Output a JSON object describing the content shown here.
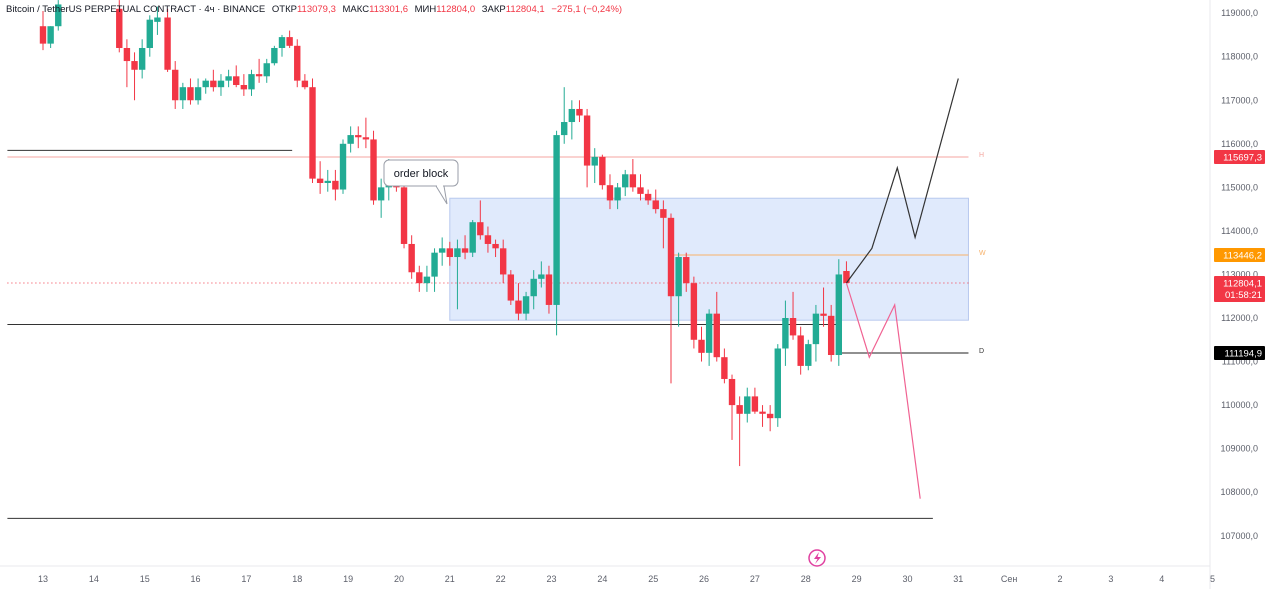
{
  "header": {
    "symbol": "Bitcoin / TetherUS PERPETUAL CONTRACT · 4ч · BINANCE",
    "open_label": "ОТКР",
    "open_value": "113079,3",
    "high_label": "МАКС",
    "high_value": "113301,6",
    "low_label": "МИН",
    "low_value": "112804,0",
    "close_label": "ЗАКР",
    "close_value": "112804,1",
    "change": "−275,1 (−0,24%)"
  },
  "annotation": {
    "order_block": "order block"
  },
  "level_markers": {
    "h": "H",
    "w": "W",
    "d": "D"
  },
  "price_tags": {
    "level_h": "115697,3",
    "level_w": "113446,2",
    "current_price": "112804,1",
    "countdown": "01:58:21",
    "level_d": "111194,9"
  },
  "colors": {
    "up": "#22ab94",
    "down": "#f23645",
    "zone": "#dbe6fb",
    "level_h": "#f4a6a0",
    "level_w": "#f7b16a",
    "projection_bear": "#f06292",
    "projection_bull": "#333333",
    "tag_h": "#f23645",
    "tag_w": "#ff9800",
    "tag_d": "#000000"
  },
  "chart_data": {
    "type": "candlestick",
    "title": "",
    "y_axis": {
      "ticks": [
        107000,
        108000,
        109000,
        110000,
        111000,
        112000,
        113000,
        114000,
        115000,
        116000,
        117000,
        118000,
        119000
      ],
      "tick_labels": [
        "107000,0",
        "108000,0",
        "109000,0",
        "110000,0",
        "111000,0",
        "112000,0",
        "113000,0",
        "114000,0",
        "115000,0",
        "116000,0",
        "117000,0",
        "118000,0",
        "119000,0"
      ],
      "range": [
        106200,
        119400
      ]
    },
    "x_axis": {
      "labels": [
        "13",
        "14",
        "15",
        "16",
        "17",
        "18",
        "19",
        "20",
        "21",
        "22",
        "23",
        "24",
        "25",
        "26",
        "27",
        "28",
        "29",
        "30",
        "31",
        "Сен",
        "2",
        "3",
        "4",
        "5"
      ],
      "range_days": [
        12.3,
        35.8
      ]
    },
    "candles": [
      [
        13.0,
        118700,
        119050,
        118150,
        118300
      ],
      [
        13.15,
        118300,
        118700,
        118200,
        118700
      ],
      [
        13.3,
        118700,
        119300,
        118600,
        119200
      ],
      [
        14.5,
        119100,
        119300,
        118100,
        118200
      ],
      [
        14.65,
        118200,
        118400,
        117300,
        117900
      ],
      [
        14.8,
        117900,
        118100,
        117000,
        117700
      ],
      [
        14.95,
        117700,
        118400,
        117500,
        118200
      ],
      [
        15.1,
        118200,
        118950,
        118000,
        118850
      ],
      [
        15.25,
        118800,
        119150,
        118500,
        118900
      ],
      [
        15.45,
        118900,
        119100,
        117650,
        117700
      ],
      [
        15.6,
        117700,
        117900,
        116800,
        117000
      ],
      [
        15.75,
        117000,
        117400,
        116800,
        117300
      ],
      [
        15.9,
        117300,
        117500,
        116900,
        117000
      ],
      [
        16.05,
        117000,
        117500,
        116900,
        117300
      ],
      [
        16.2,
        117300,
        117500,
        117150,
        117450
      ],
      [
        16.35,
        117450,
        117700,
        117200,
        117300
      ],
      [
        16.5,
        117300,
        117600,
        117100,
        117450
      ],
      [
        16.65,
        117450,
        117700,
        117300,
        117550
      ],
      [
        16.8,
        117550,
        117800,
        117300,
        117350
      ],
      [
        16.95,
        117350,
        117600,
        117100,
        117250
      ],
      [
        17.1,
        117250,
        117700,
        117100,
        117600
      ],
      [
        17.25,
        117600,
        117950,
        117400,
        117550
      ],
      [
        17.4,
        117550,
        117950,
        117400,
        117850
      ],
      [
        17.55,
        117850,
        118250,
        117800,
        118200
      ],
      [
        17.7,
        118200,
        118500,
        118000,
        118450
      ],
      [
        17.85,
        118450,
        118600,
        118200,
        118250
      ],
      [
        18.0,
        118250,
        118400,
        117300,
        117450
      ],
      [
        18.15,
        117450,
        117600,
        117250,
        117300
      ],
      [
        18.3,
        117300,
        117500,
        115100,
        115200
      ],
      [
        18.45,
        115200,
        115600,
        114850,
        115100
      ],
      [
        18.6,
        115100,
        115400,
        114900,
        115150
      ],
      [
        18.75,
        115150,
        115400,
        114700,
        114950
      ],
      [
        18.9,
        114950,
        116100,
        114850,
        116000
      ],
      [
        19.05,
        116000,
        116400,
        115800,
        116200
      ],
      [
        19.2,
        116200,
        116400,
        115900,
        116150
      ],
      [
        19.35,
        116150,
        116600,
        115900,
        116100
      ],
      [
        19.5,
        116100,
        116300,
        114600,
        114700
      ],
      [
        19.65,
        114700,
        115200,
        114300,
        115000
      ],
      [
        19.8,
        115000,
        115650,
        114700,
        115450
      ],
      [
        19.95,
        115450,
        115600,
        114900,
        115000
      ],
      [
        20.1,
        115000,
        115300,
        113600,
        113700
      ],
      [
        20.25,
        113700,
        113900,
        112900,
        113050
      ],
      [
        20.4,
        113050,
        113200,
        112600,
        112800
      ],
      [
        20.55,
        112800,
        113200,
        112600,
        112950
      ],
      [
        20.7,
        112950,
        113600,
        112600,
        113500
      ],
      [
        20.85,
        113500,
        113850,
        113200,
        113600
      ],
      [
        21.0,
        113600,
        113750,
        113200,
        113400
      ],
      [
        21.15,
        113400,
        113800,
        112200,
        113600
      ],
      [
        21.3,
        113600,
        113900,
        113350,
        113500
      ],
      [
        21.45,
        113500,
        114250,
        113400,
        114200
      ],
      [
        21.6,
        114200,
        114700,
        113800,
        113900
      ],
      [
        21.75,
        113900,
        114100,
        113500,
        113700
      ],
      [
        21.9,
        113700,
        113800,
        113400,
        113600
      ],
      [
        22.05,
        113600,
        113800,
        112800,
        113000
      ],
      [
        22.2,
        113000,
        113100,
        112300,
        112400
      ],
      [
        22.35,
        112400,
        112800,
        111950,
        112100
      ],
      [
        22.5,
        112100,
        112600,
        111950,
        112500
      ],
      [
        22.65,
        112500,
        113100,
        112200,
        112900
      ],
      [
        22.8,
        112900,
        113300,
        112700,
        113000
      ],
      [
        22.95,
        113000,
        113200,
        112100,
        112300
      ],
      [
        23.1,
        112300,
        116300,
        111600,
        116200
      ],
      [
        23.25,
        116200,
        117300,
        116000,
        116500
      ],
      [
        23.4,
        116500,
        117000,
        116100,
        116800
      ],
      [
        23.55,
        116800,
        117000,
        116500,
        116650
      ],
      [
        23.7,
        116650,
        116800,
        115000,
        115500
      ],
      [
        23.85,
        115500,
        115900,
        115100,
        115700
      ],
      [
        24.0,
        115700,
        115750,
        114950,
        115050
      ],
      [
        24.15,
        115050,
        115300,
        114500,
        114700
      ],
      [
        24.3,
        114700,
        115100,
        114500,
        115000
      ],
      [
        24.45,
        115000,
        115400,
        114800,
        115300
      ],
      [
        24.6,
        115300,
        115650,
        114900,
        115000
      ],
      [
        24.75,
        115000,
        115300,
        114700,
        114850
      ],
      [
        24.9,
        114850,
        114950,
        114600,
        114700
      ],
      [
        25.05,
        114700,
        114950,
        114400,
        114500
      ],
      [
        25.2,
        114500,
        114700,
        113600,
        114300
      ],
      [
        25.35,
        114300,
        114400,
        110500,
        112500
      ],
      [
        25.5,
        112500,
        113500,
        111800,
        113400
      ],
      [
        25.65,
        113400,
        113500,
        112600,
        112800
      ],
      [
        25.8,
        112800,
        112950,
        111300,
        111500
      ],
      [
        25.95,
        111500,
        111800,
        111000,
        111200
      ],
      [
        26.1,
        111200,
        112200,
        110900,
        112100
      ],
      [
        26.25,
        112100,
        112600,
        111000,
        111100
      ],
      [
        26.4,
        111100,
        111300,
        110500,
        110600
      ],
      [
        26.55,
        110600,
        110700,
        109200,
        110000
      ],
      [
        26.7,
        110000,
        110200,
        108600,
        109800
      ],
      [
        26.85,
        109800,
        110400,
        109600,
        110200
      ],
      [
        27.0,
        110200,
        110400,
        109800,
        109850
      ],
      [
        27.15,
        109850,
        110000,
        109500,
        109800
      ],
      [
        27.3,
        109800,
        110000,
        109400,
        109700
      ],
      [
        27.45,
        109700,
        111400,
        109500,
        111300
      ],
      [
        27.6,
        111300,
        112400,
        110900,
        112000
      ],
      [
        27.75,
        112000,
        112600,
        111500,
        111600
      ],
      [
        27.9,
        111600,
        111800,
        110700,
        110900
      ],
      [
        28.05,
        110900,
        111500,
        110800,
        111400
      ],
      [
        28.2,
        111400,
        112300,
        111000,
        112100
      ],
      [
        28.35,
        112100,
        112700,
        111800,
        112050
      ],
      [
        28.5,
        112050,
        112300,
        111000,
        111150
      ],
      [
        28.65,
        111150,
        113350,
        110900,
        113000
      ],
      [
        28.8,
        113079.3,
        113301.6,
        112804,
        112804.1
      ]
    ],
    "levels": [
      {
        "name": "H",
        "price": 115697.3,
        "from": 12.3,
        "to": 31.2
      },
      {
        "name": "W",
        "price": 113446.2,
        "from": 25.3,
        "to": 31.2
      },
      {
        "name": "D",
        "price": 111194.9,
        "from": 28.6,
        "to": 31.2
      },
      {
        "name": "black-upper",
        "price": 115850,
        "from": 12.3,
        "to": 17.9
      },
      {
        "name": "black-middle",
        "price": 111850,
        "from": 12.3,
        "to": 28.7
      },
      {
        "name": "black-lower",
        "price": 107400,
        "from": 12.3,
        "to": 30.5
      },
      {
        "name": "current-dotted",
        "price": 112804.1,
        "from": 12.3,
        "to": 31.2
      }
    ],
    "zone": {
      "top": 114750,
      "bottom": 111950,
      "from": 21.0,
      "to": 31.2
    },
    "projections": {
      "bull": [
        [
          28.8,
          112804
        ],
        [
          29.3,
          113600
        ],
        [
          29.8,
          115450
        ],
        [
          30.15,
          113850
        ],
        [
          31.0,
          117500
        ]
      ],
      "bear": [
        [
          28.8,
          112804
        ],
        [
          29.25,
          111100
        ],
        [
          29.75,
          112300
        ],
        [
          30.25,
          107850
        ]
      ]
    }
  }
}
